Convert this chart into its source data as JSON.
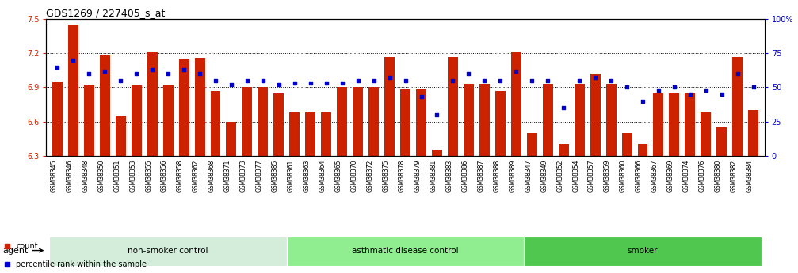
{
  "title": "GDS1269 / 227405_s_at",
  "ylim_left": [
    6.3,
    7.5
  ],
  "ylim_right": [
    0,
    100
  ],
  "yticks_left": [
    6.3,
    6.6,
    6.9,
    7.2,
    7.5
  ],
  "yticks_right": [
    0,
    25,
    50,
    75,
    100
  ],
  "yticklabels_left": [
    "6.3",
    "6.6",
    "6.9",
    "7.2",
    "7.5"
  ],
  "yticklabels_right": [
    "0",
    "25",
    "50",
    "75",
    "100%"
  ],
  "hlines": [
    6.6,
    6.9,
    7.2
  ],
  "bar_color": "#cc2200",
  "dot_color": "#0000cc",
  "bar_width": 0.65,
  "samples": [
    "GSM38345",
    "GSM38346",
    "GSM38348",
    "GSM38350",
    "GSM38351",
    "GSM38353",
    "GSM38355",
    "GSM38356",
    "GSM38358",
    "GSM38362",
    "GSM38368",
    "GSM38371",
    "GSM38373",
    "GSM38377",
    "GSM38385",
    "GSM38361",
    "GSM38363",
    "GSM38364",
    "GSM38365",
    "GSM38370",
    "GSM38372",
    "GSM38375",
    "GSM38378",
    "GSM38379",
    "GSM38381",
    "GSM38383",
    "GSM38386",
    "GSM38387",
    "GSM38388",
    "GSM38389",
    "GSM38347",
    "GSM38349",
    "GSM38352",
    "GSM38354",
    "GSM38357",
    "GSM38359",
    "GSM38360",
    "GSM38366",
    "GSM38367",
    "GSM38369",
    "GSM38374",
    "GSM38376",
    "GSM38380",
    "GSM38382",
    "GSM38384"
  ],
  "bar_values": [
    6.95,
    7.45,
    6.92,
    7.18,
    6.65,
    6.92,
    7.21,
    6.92,
    7.15,
    7.16,
    6.87,
    6.6,
    6.9,
    6.9,
    6.85,
    6.68,
    6.68,
    6.68,
    6.9,
    6.9,
    6.9,
    7.17,
    6.88,
    6.88,
    6.35,
    7.17,
    6.93,
    6.93,
    6.87,
    7.21,
    6.5,
    6.93,
    6.4,
    6.93,
    7.02,
    6.93,
    6.5,
    6.4,
    6.85,
    6.85,
    6.85,
    6.68,
    6.55,
    7.17,
    6.7
  ],
  "dot_values": [
    65,
    70,
    60,
    62,
    55,
    60,
    63,
    60,
    63,
    60,
    55,
    52,
    55,
    55,
    52,
    53,
    53,
    53,
    53,
    55,
    55,
    57,
    55,
    43,
    30,
    55,
    60,
    55,
    55,
    62,
    55,
    55,
    35,
    55,
    57,
    55,
    50,
    40,
    48,
    50,
    45,
    48,
    45,
    60,
    50
  ],
  "groups": [
    {
      "label": "non-smoker control",
      "start": 0,
      "end": 15,
      "color": "#d4edda"
    },
    {
      "label": "asthmatic disease control",
      "start": 15,
      "end": 30,
      "color": "#90ee90"
    },
    {
      "label": "smoker",
      "start": 30,
      "end": 45,
      "color": "#50c850"
    }
  ],
  "legend_items": [
    {
      "label": "count",
      "color": "#cc2200"
    },
    {
      "label": "percentile rank within the sample",
      "color": "#0000cc"
    }
  ],
  "agent_label": "agent",
  "tick_color_left": "#cc2200",
  "tick_color_right": "#0000cc",
  "title_fontsize": 9,
  "tick_fontsize": 7,
  "xlabel_fontsize": 5.5,
  "group_fontsize": 7.5,
  "legend_fontsize": 7,
  "xtick_bg_color": "#cccccc"
}
